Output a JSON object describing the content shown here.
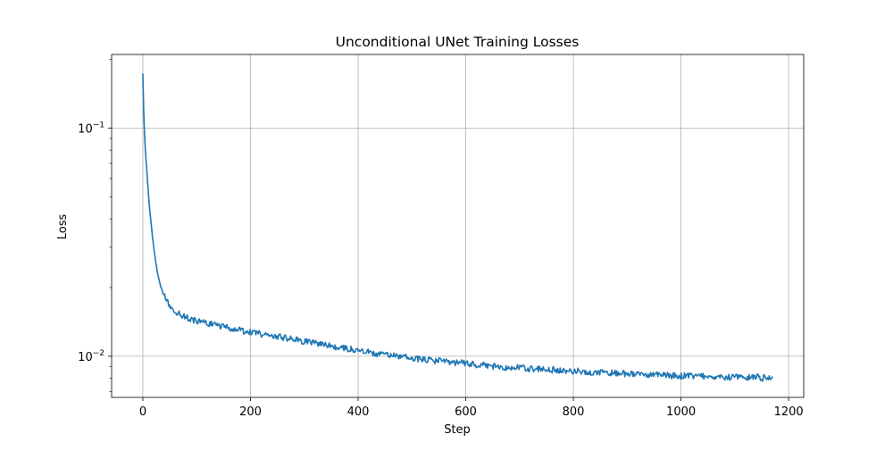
{
  "chart_data": {
    "type": "line",
    "title": "Unconditional UNet Training Losses",
    "xlabel": "Step",
    "ylabel": "Loss",
    "xlim": [
      -58,
      1228
    ],
    "ylim": [
      0.0066,
      0.21
    ],
    "yscale": "log",
    "grid": true,
    "x_ticks": [
      0,
      200,
      400,
      600,
      800,
      1000,
      1200
    ],
    "x_tick_labels": [
      "0",
      "200",
      "400",
      "600",
      "800",
      "1000",
      "1200"
    ],
    "y_major_ticks": [
      0.01,
      0.1
    ],
    "y_tick_labels": [
      "10^-2",
      "10^-1"
    ],
    "y_minor_ticks": [
      0.007,
      0.008,
      0.009,
      0.02,
      0.03,
      0.04,
      0.05,
      0.06,
      0.07,
      0.08,
      0.09,
      0.2
    ],
    "series": [
      {
        "color": "#1f77b4",
        "x": [
          0,
          1,
          2,
          3,
          4,
          6,
          8,
          10,
          12,
          15,
          18,
          21,
          24,
          27,
          30,
          35,
          40,
          45,
          50,
          60,
          70,
          80,
          90,
          100,
          120,
          140,
          160,
          180,
          200,
          220,
          240,
          260,
          280,
          300,
          320,
          340,
          360,
          380,
          400,
          420,
          440,
          460,
          480,
          500,
          520,
          540,
          560,
          580,
          600,
          620,
          640,
          660,
          680,
          700,
          720,
          740,
          760,
          780,
          800,
          820,
          840,
          860,
          880,
          900,
          920,
          940,
          960,
          980,
          1000,
          1020,
          1040,
          1060,
          1080,
          1100,
          1120,
          1140,
          1160,
          1170
        ],
        "y": [
          0.175,
          0.14,
          0.105,
          0.095,
          0.085,
          0.072,
          0.062,
          0.053,
          0.046,
          0.039,
          0.033,
          0.029,
          0.026,
          0.0235,
          0.0215,
          0.0195,
          0.0183,
          0.0174,
          0.0167,
          0.0158,
          0.0152,
          0.0148,
          0.0145,
          0.0143,
          0.0139,
          0.0136,
          0.0133,
          0.013,
          0.0127,
          0.0125,
          0.0123,
          0.0121,
          0.0119,
          0.0116,
          0.0114,
          0.0112,
          0.011,
          0.0108,
          0.0106,
          0.0104,
          0.0102,
          0.0101,
          0.01,
          0.0098,
          0.0097,
          0.0096,
          0.0095,
          0.0094,
          0.0093,
          0.0092,
          0.0091,
          0.009,
          0.0089,
          0.0089,
          0.0088,
          0.0088,
          0.0087,
          0.0087,
          0.0086,
          0.0086,
          0.0085,
          0.0085,
          0.0084,
          0.0084,
          0.0083,
          0.0083,
          0.0083,
          0.0082,
          0.0082,
          0.0082,
          0.0082,
          0.0081,
          0.0081,
          0.0081,
          0.0081,
          0.0081,
          0.008,
          0.0079
        ]
      }
    ]
  }
}
